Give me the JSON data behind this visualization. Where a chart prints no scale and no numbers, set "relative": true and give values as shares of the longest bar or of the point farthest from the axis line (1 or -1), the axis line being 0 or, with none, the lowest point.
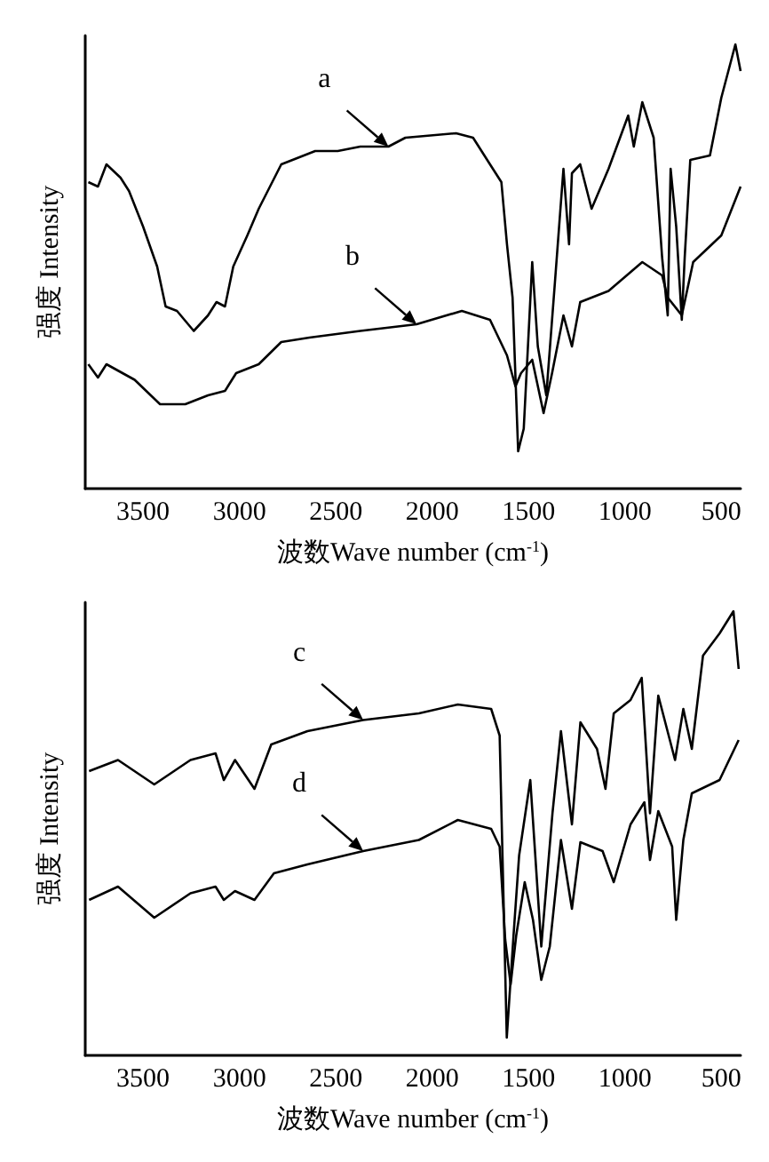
{
  "chart_data": [
    {
      "type": "line",
      "xlabel": "波数Wave number (cm$^{-1}$)",
      "ylabel": "强度 Intensity",
      "relative": true,
      "xlim": [
        3800,
        400
      ],
      "xticks": [
        3500,
        3000,
        2500,
        2000,
        1500,
        1000,
        500
      ],
      "marker": "none",
      "line_style": "solid",
      "series": [
        {
          "color": "#000000",
          "x": [
            3784,
            3734,
            3690,
            3617,
            3573,
            3500,
            3427,
            3383,
            3324,
            3237,
            3163,
            3119,
            3075,
            3032,
            2959,
            2900,
            2783,
            2607,
            2490,
            2373,
            2227,
            2139,
            1876,
            1788,
            1700,
            1641,
            1612,
            1583,
            1554,
            1525,
            1495,
            1481,
            1452,
            1408,
            1364,
            1319,
            1290,
            1275,
            1232,
            1173,
            1085,
            983,
            954,
            910,
            851,
            807,
            778,
            763,
            734,
            705,
            690,
            661,
            559,
            500,
            427,
            400
          ],
          "values": [
            0.69,
            0.68,
            0.73,
            0.7,
            0.67,
            0.59,
            0.5,
            0.41,
            0.4,
            0.355,
            0.39,
            0.42,
            0.41,
            0.5,
            0.57,
            0.63,
            0.73,
            0.76,
            0.76,
            0.77,
            0.77,
            0.79,
            0.8,
            0.79,
            0.73,
            0.69,
            0.55,
            0.43,
            0.084,
            0.135,
            0.39,
            0.51,
            0.32,
            0.21,
            0.46,
            0.72,
            0.55,
            0.71,
            0.73,
            0.63,
            0.72,
            0.84,
            0.77,
            0.87,
            0.79,
            0.52,
            0.39,
            0.72,
            0.59,
            0.38,
            0.52,
            0.74,
            0.75,
            0.88,
            1,
            0.94
          ]
        },
        {
          "color": "#000000",
          "x": [
            3784,
            3734,
            3690,
            3544,
            3412,
            3281,
            3163,
            3075,
            3017,
            2900,
            2783,
            2637,
            2373,
            2081,
            1846,
            1700,
            1612,
            1568,
            1539,
            1481,
            1422,
            1378,
            1319,
            1275,
            1232,
            1085,
            910,
            807,
            778,
            705,
            646,
            500,
            400
          ],
          "values": [
            0.28,
            0.25,
            0.28,
            0.245,
            0.19,
            0.19,
            0.21,
            0.22,
            0.26,
            0.28,
            0.33,
            0.34,
            0.355,
            0.37,
            0.4,
            0.38,
            0.3,
            0.23,
            0.26,
            0.29,
            0.17,
            0.26,
            0.39,
            0.32,
            0.42,
            0.445,
            0.51,
            0.48,
            0.43,
            0.39,
            0.51,
            0.57,
            0.68
          ]
        }
      ],
      "annotations": [
        {
          "text": "a",
          "x": 2227,
          "y": 0.77
        },
        {
          "text": "b",
          "x": 2081,
          "y": 0.37
        }
      ]
    },
    {
      "type": "line",
      "xlabel": "波数Wave number (cm$^{-1}$)",
      "ylabel": "强度 Intensity",
      "relative": true,
      "xlim": [
        3800,
        400
      ],
      "xticks": [
        3500,
        3000,
        2500,
        2000,
        1500,
        1000,
        500
      ],
      "marker": "none",
      "line_style": "solid",
      "series": [
        {
          "color": "#000000",
          "x": [
            3780,
            3630,
            3442,
            3254,
            3124,
            3081,
            3023,
            2922,
            2835,
            2647,
            2358,
            2069,
            1867,
            1694,
            1650,
            1613,
            1578,
            1549,
            1491,
            1434,
            1376,
            1332,
            1275,
            1231,
            1145,
            1101,
            1058,
            971,
            913,
            870,
            827,
            740,
            697,
            653,
            595,
            509,
            437,
            410
          ],
          "values": [
            0.64,
            0.665,
            0.61,
            0.665,
            0.68,
            0.62,
            0.665,
            0.6,
            0.7,
            0.73,
            0.755,
            0.77,
            0.79,
            0.78,
            0.72,
            0.04,
            0.27,
            0.45,
            0.62,
            0.245,
            0.545,
            0.73,
            0.52,
            0.75,
            0.69,
            0.6,
            0.77,
            0.8,
            0.85,
            0.545,
            0.81,
            0.665,
            0.78,
            0.69,
            0.9,
            0.95,
            1,
            0.87
          ]
        },
        {
          "color": "#000000",
          "x": [
            3780,
            3630,
            3442,
            3254,
            3124,
            3081,
            3023,
            2922,
            2821,
            2647,
            2358,
            2069,
            1867,
            1694,
            1650,
            1621,
            1593,
            1564,
            1520,
            1477,
            1434,
            1390,
            1332,
            1275,
            1231,
            1116,
            1058,
            971,
            899,
            870,
            827,
            755,
            734,
            697,
            653,
            509,
            410
          ],
          "values": [
            0.35,
            0.38,
            0.31,
            0.365,
            0.38,
            0.35,
            0.37,
            0.35,
            0.41,
            0.43,
            0.46,
            0.485,
            0.53,
            0.51,
            0.47,
            0.26,
            0.16,
            0.27,
            0.39,
            0.305,
            0.17,
            0.245,
            0.485,
            0.33,
            0.48,
            0.46,
            0.39,
            0.52,
            0.57,
            0.44,
            0.55,
            0.47,
            0.305,
            0.485,
            0.59,
            0.62,
            0.71
          ]
        }
      ],
      "annotations": [
        {
          "text": "c",
          "x": 2358,
          "y": 0.755
        },
        {
          "text": "d",
          "x": 2358,
          "y": 0.46
        }
      ]
    }
  ]
}
